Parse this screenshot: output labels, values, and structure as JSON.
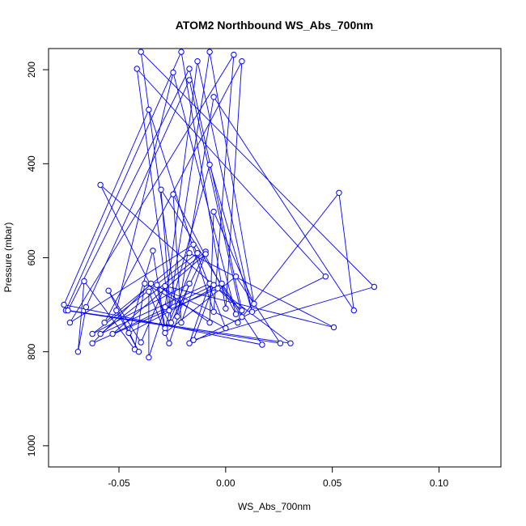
{
  "chart_data": {
    "type": "scatter",
    "title": "ATOM2 Northbound WS_Abs_700nm",
    "xlabel": "WS_Abs_700nm",
    "ylabel": "Pressure (mbar)",
    "xlim": [
      -0.083,
      0.129
    ],
    "ylim": [
      1045,
      155
    ],
    "y_reversed": true,
    "grid": false,
    "color": "#0000ff",
    "xticks": [
      {
        "value": -0.05,
        "label": "-0.05"
      },
      {
        "value": 0.0,
        "label": "0.00"
      },
      {
        "value": 0.05,
        "label": "0.05"
      },
      {
        "value": 0.1,
        "label": "0.10"
      }
    ],
    "yticks": [
      {
        "value": 200,
        "label": "200"
      },
      {
        "value": 400,
        "label": "400"
      },
      {
        "value": 600,
        "label": "600"
      },
      {
        "value": 800,
        "label": "800"
      },
      {
        "value": 1000,
        "label": "1000"
      }
    ],
    "series": [
      {
        "values": [
          {
            "x": -0.0416,
            "y": 198
          },
          {
            "x": -0.0397,
            "y": 162
          },
          {
            "x": -0.036,
            "y": 285
          },
          {
            "x": -0.0208,
            "y": 162
          },
          {
            "x": -0.017,
            "y": 198
          },
          {
            "x": -0.017,
            "y": 222
          },
          {
            "x": -0.0246,
            "y": 206
          },
          {
            "x": -0.0132,
            "y": 182
          },
          {
            "x": -0.0075,
            "y": 162
          },
          {
            "x": -0.0056,
            "y": 258
          },
          {
            "x": 0.0038,
            "y": 168
          },
          {
            "x": 0.0076,
            "y": 182
          },
          {
            "x": -0.0587,
            "y": 445
          },
          {
            "x": -0.0303,
            "y": 455
          },
          {
            "x": -0.0246,
            "y": 465
          },
          {
            "x": -0.0075,
            "y": 402
          },
          {
            "x": -0.0056,
            "y": 502
          },
          {
            "x": 0.0531,
            "y": 462
          },
          {
            "x": -0.0151,
            "y": 572
          },
          {
            "x": -0.017,
            "y": 590
          },
          {
            "x": -0.0132,
            "y": 590
          },
          {
            "x": -0.0094,
            "y": 587
          },
          {
            "x": -0.0094,
            "y": 592
          },
          {
            "x": -0.0341,
            "y": 585
          },
          {
            "x": -0.0322,
            "y": 658
          },
          {
            "x": -0.035,
            "y": 655
          },
          {
            "x": -0.0379,
            "y": 655
          },
          {
            "x": -0.0284,
            "y": 660
          },
          {
            "x": -0.017,
            "y": 655
          },
          {
            "x": -0.0075,
            "y": 655
          },
          {
            "x": -0.0056,
            "y": 658
          },
          {
            "x": -0.0018,
            "y": 655
          },
          {
            "x": 0.0048,
            "y": 640
          },
          {
            "x": -0.0037,
            "y": 665
          },
          {
            "x": -0.0663,
            "y": 650
          },
          {
            "x": -0.0549,
            "y": 670
          },
          {
            "x": -0.036,
            "y": 672
          },
          {
            "x": 0.0468,
            "y": 640
          },
          {
            "x": 0.0696,
            "y": 662
          },
          {
            "x": -0.0758,
            "y": 700
          },
          {
            "x": -0.0749,
            "y": 712
          },
          {
            "x": -0.0739,
            "y": 712
          },
          {
            "x": -0.0654,
            "y": 705
          },
          {
            "x": -0.0512,
            "y": 712
          },
          {
            "x": -0.0284,
            "y": 705
          },
          {
            "x": -0.0265,
            "y": 712
          },
          {
            "x": -0.0227,
            "y": 725
          },
          {
            "x": -0.0056,
            "y": 715
          },
          {
            "x": 0.0,
            "y": 708
          },
          {
            "x": 0.0076,
            "y": 712
          },
          {
            "x": 0.0076,
            "y": 726
          },
          {
            "x": 0.0048,
            "y": 720
          },
          {
            "x": 0.0124,
            "y": 715
          },
          {
            "x": 0.0133,
            "y": 698
          },
          {
            "x": 0.0601,
            "y": 712
          },
          {
            "x": -0.073,
            "y": 738
          },
          {
            "x": -0.0568,
            "y": 738
          },
          {
            "x": -0.0265,
            "y": 738
          },
          {
            "x": -0.0256,
            "y": 738
          },
          {
            "x": -0.0208,
            "y": 738
          },
          {
            "x": -0.0284,
            "y": 750
          },
          {
            "x": -0.0075,
            "y": 738
          },
          {
            "x": 0.0057,
            "y": 738
          },
          {
            "x": 0.0,
            "y": 750
          },
          {
            "x": 0.0507,
            "y": 748
          },
          {
            "x": -0.0625,
            "y": 762
          },
          {
            "x": -0.0587,
            "y": 762
          },
          {
            "x": -0.053,
            "y": 762
          },
          {
            "x": -0.0454,
            "y": 760
          },
          {
            "x": -0.0284,
            "y": 760
          },
          {
            "x": -0.0625,
            "y": 782
          },
          {
            "x": -0.0426,
            "y": 795
          },
          {
            "x": -0.0397,
            "y": 780
          },
          {
            "x": -0.0265,
            "y": 782
          },
          {
            "x": -0.017,
            "y": 782
          },
          {
            "x": -0.0151,
            "y": 775
          },
          {
            "x": 0.0171,
            "y": 785
          },
          {
            "x": 0.0256,
            "y": 782
          },
          {
            "x": 0.0304,
            "y": 782
          },
          {
            "x": -0.0692,
            "y": 800
          },
          {
            "x": -0.0407,
            "y": 800
          },
          {
            "x": -0.036,
            "y": 812
          }
        ]
      }
    ]
  }
}
